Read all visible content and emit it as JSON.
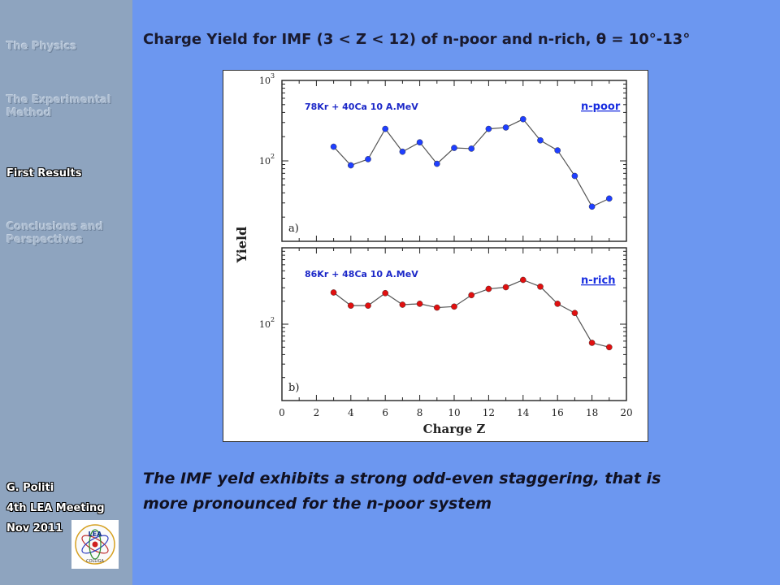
{
  "sidebar": {
    "nav": [
      {
        "label": "The Physics",
        "active": false
      },
      {
        "label": "The Experimental Method",
        "active": false
      },
      {
        "label": "First Results",
        "active": true
      },
      {
        "label": "Conclusions and Perspectives",
        "active": false
      }
    ],
    "author": {
      "name": "G. Politi",
      "meeting": "4th LEA Meeting",
      "date": "Nov 2011"
    },
    "logo": {
      "text": "LEA",
      "ring_text": "COLLIGA"
    }
  },
  "slide": {
    "title": "Charge Yield for IMF (3 < Z < 12) of n-poor and n-rich, θ = 10°-13°",
    "caption_line1": "The IMF yeld exhibits a strong odd-even staggering, that is",
    "caption_line2": "more pronounced for the n-poor system"
  },
  "chart_data": [
    {
      "type": "line",
      "panel": "a)",
      "reaction": "78Kr + 40Ca  10 A.MeV",
      "legend": "n-poor",
      "color": "#1f3fff",
      "xlabel": "Charge Z",
      "ylabel": "Yield",
      "xlim": [
        0,
        20
      ],
      "ylim": [
        10,
        1000
      ],
      "yscale": "log",
      "x": [
        3,
        4,
        5,
        6,
        7,
        8,
        9,
        10,
        11,
        12,
        13,
        14,
        15,
        16,
        17,
        18,
        19
      ],
      "y": [
        150,
        88,
        105,
        250,
        130,
        170,
        92,
        145,
        142,
        250,
        260,
        330,
        180,
        135,
        65,
        27,
        34
      ]
    },
    {
      "type": "line",
      "panel": "b)",
      "reaction": "86Kr + 48Ca  10 A.MeV",
      "legend": "n-rich",
      "color": "#e01010",
      "xlabel": "Charge Z",
      "ylabel": "Yield",
      "xlim": [
        0,
        20
      ],
      "ylim": [
        10,
        1000
      ],
      "yscale": "log",
      "x": [
        3,
        4,
        5,
        6,
        7,
        8,
        9,
        10,
        11,
        12,
        13,
        14,
        15,
        16,
        17,
        18,
        19
      ],
      "y": [
        260,
        175,
        175,
        255,
        180,
        185,
        165,
        170,
        240,
        290,
        305,
        380,
        310,
        185,
        140,
        57,
        50
      ]
    }
  ],
  "axis": {
    "x_ticks": [
      "0",
      "2",
      "4",
      "6",
      "8",
      "10",
      "12",
      "14",
      "16",
      "18",
      "20"
    ],
    "y_ticks": [
      "10",
      "10"
    ],
    "y_exponents": [
      "3",
      "2"
    ]
  }
}
